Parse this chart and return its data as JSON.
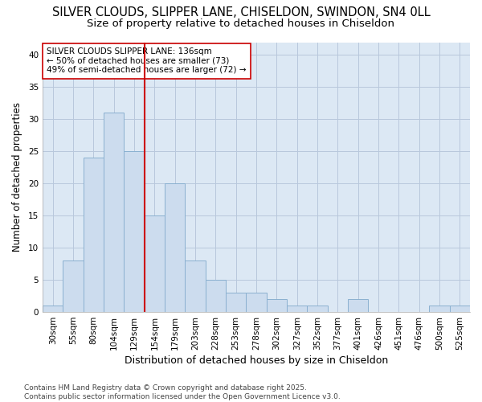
{
  "title1": "SILVER CLOUDS, SLIPPER LANE, CHISELDON, SWINDON, SN4 0LL",
  "title2": "Size of property relative to detached houses in Chiseldon",
  "xlabel": "Distribution of detached houses by size in Chiseldon",
  "ylabel": "Number of detached properties",
  "categories": [
    "30sqm",
    "55sqm",
    "80sqm",
    "104sqm",
    "129sqm",
    "154sqm",
    "179sqm",
    "203sqm",
    "228sqm",
    "253sqm",
    "278sqm",
    "302sqm",
    "327sqm",
    "352sqm",
    "377sqm",
    "401sqm",
    "426sqm",
    "451sqm",
    "476sqm",
    "500sqm",
    "525sqm"
  ],
  "values": [
    1,
    8,
    24,
    31,
    25,
    15,
    20,
    8,
    5,
    3,
    3,
    2,
    1,
    1,
    0,
    2,
    0,
    0,
    0,
    1,
    1
  ],
  "bar_color": "#ccdcee",
  "bar_edge_color": "#8ab0d0",
  "grid_color": "#b8c8dc",
  "plot_bg_color": "#dce8f4",
  "fig_bg_color": "#ffffff",
  "vline_x_index": 4,
  "vline_color": "#cc0000",
  "annotation_text": "SILVER CLOUDS SLIPPER LANE: 136sqm\n← 50% of detached houses are smaller (73)\n49% of semi-detached houses are larger (72) →",
  "annotation_box_color": "#ffffff",
  "annotation_box_edge": "#cc0000",
  "ylim": [
    0,
    42
  ],
  "yticks": [
    0,
    5,
    10,
    15,
    20,
    25,
    30,
    35,
    40
  ],
  "footer_text": "Contains HM Land Registry data © Crown copyright and database right 2025.\nContains public sector information licensed under the Open Government Licence v3.0.",
  "title1_fontsize": 10.5,
  "title2_fontsize": 9.5,
  "annot_fontsize": 7.5,
  "footer_fontsize": 6.5,
  "xlabel_fontsize": 9,
  "ylabel_fontsize": 8.5,
  "tick_fontsize": 7.5
}
